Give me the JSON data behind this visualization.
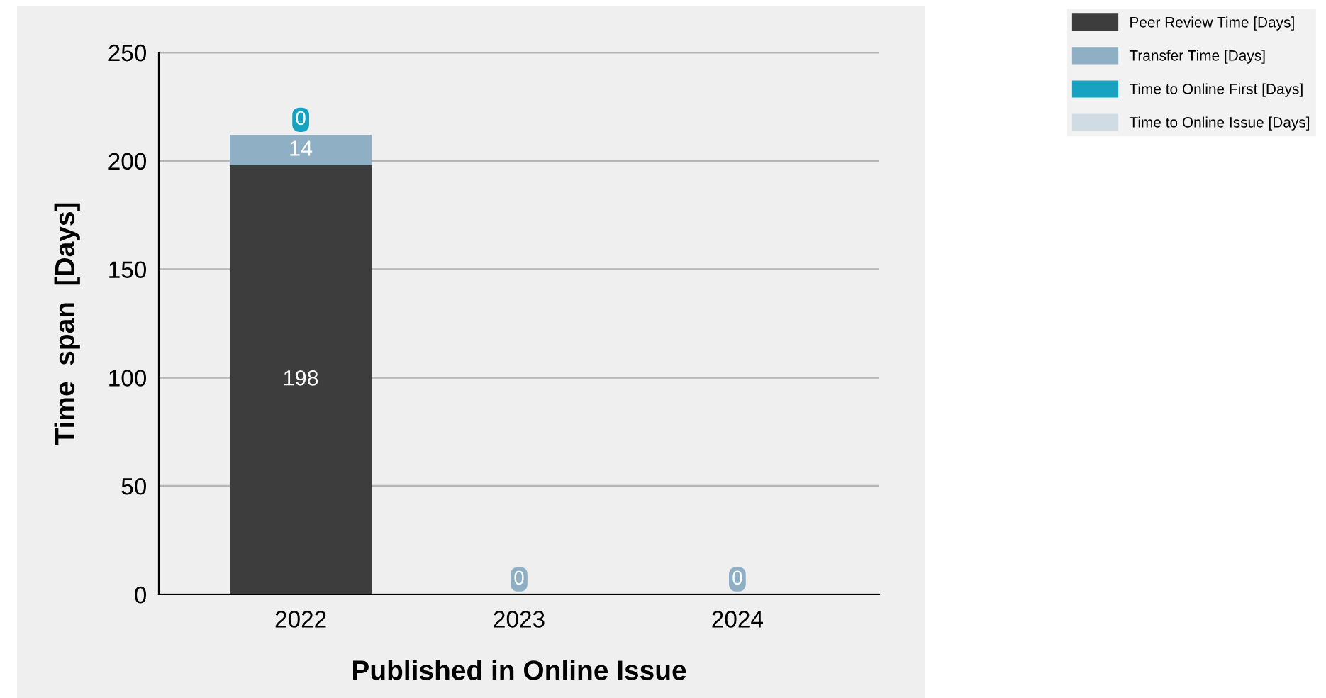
{
  "chart_data": {
    "type": "bar",
    "stacked": true,
    "xlabel": "Published in Online Issue",
    "ylabel": "Time  span  [Days]",
    "categories": [
      "2022",
      "2023",
      "2024"
    ],
    "series": [
      {
        "name": "Peer Review Time [Days]",
        "color": "#3d3d3d",
        "values": [
          198,
          0,
          0
        ],
        "value_labels": [
          "198",
          null,
          null
        ]
      },
      {
        "name": "Transfer Time [Days]",
        "color": "#8fafc4",
        "values": [
          14,
          0,
          0
        ],
        "value_labels": [
          "14",
          "0",
          "0"
        ]
      },
      {
        "name": "Time to Online First [Days]",
        "color": "#17a2c0",
        "values": [
          0,
          0,
          0
        ],
        "value_labels": [
          "0",
          null,
          null
        ]
      },
      {
        "name": "Time to Online Issue [Days]",
        "color": "#cfdce3",
        "values": [
          0,
          0,
          0
        ],
        "value_labels": [
          null,
          null,
          null
        ]
      }
    ],
    "ylim": [
      0,
      250
    ],
    "yticks": [
      0,
      50,
      100,
      150,
      200,
      250
    ],
    "grid": "y",
    "legend": "top right"
  }
}
